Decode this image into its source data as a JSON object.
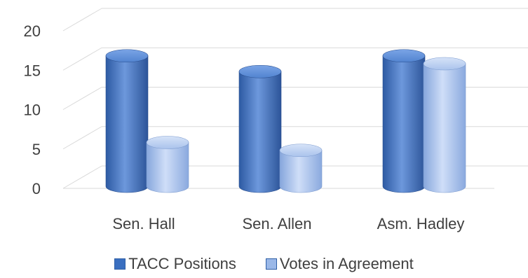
{
  "chart_data": {
    "type": "bar",
    "style": "3d-cylinder",
    "categories": [
      "Sen. Hall",
      "Sen. Allen",
      "Asm. Hadley"
    ],
    "series": [
      {
        "name": "TACC Positions",
        "values": [
          17,
          15,
          17
        ],
        "color": "#3a6fc0"
      },
      {
        "name": "Votes in Agreement",
        "values": [
          6,
          5,
          16
        ],
        "color": "#9ab8e8"
      }
    ],
    "ylim": [
      0,
      20
    ],
    "yticks": [
      "0",
      "5",
      "10",
      "15",
      "20"
    ],
    "grid": true,
    "legend_position": "bottom"
  }
}
